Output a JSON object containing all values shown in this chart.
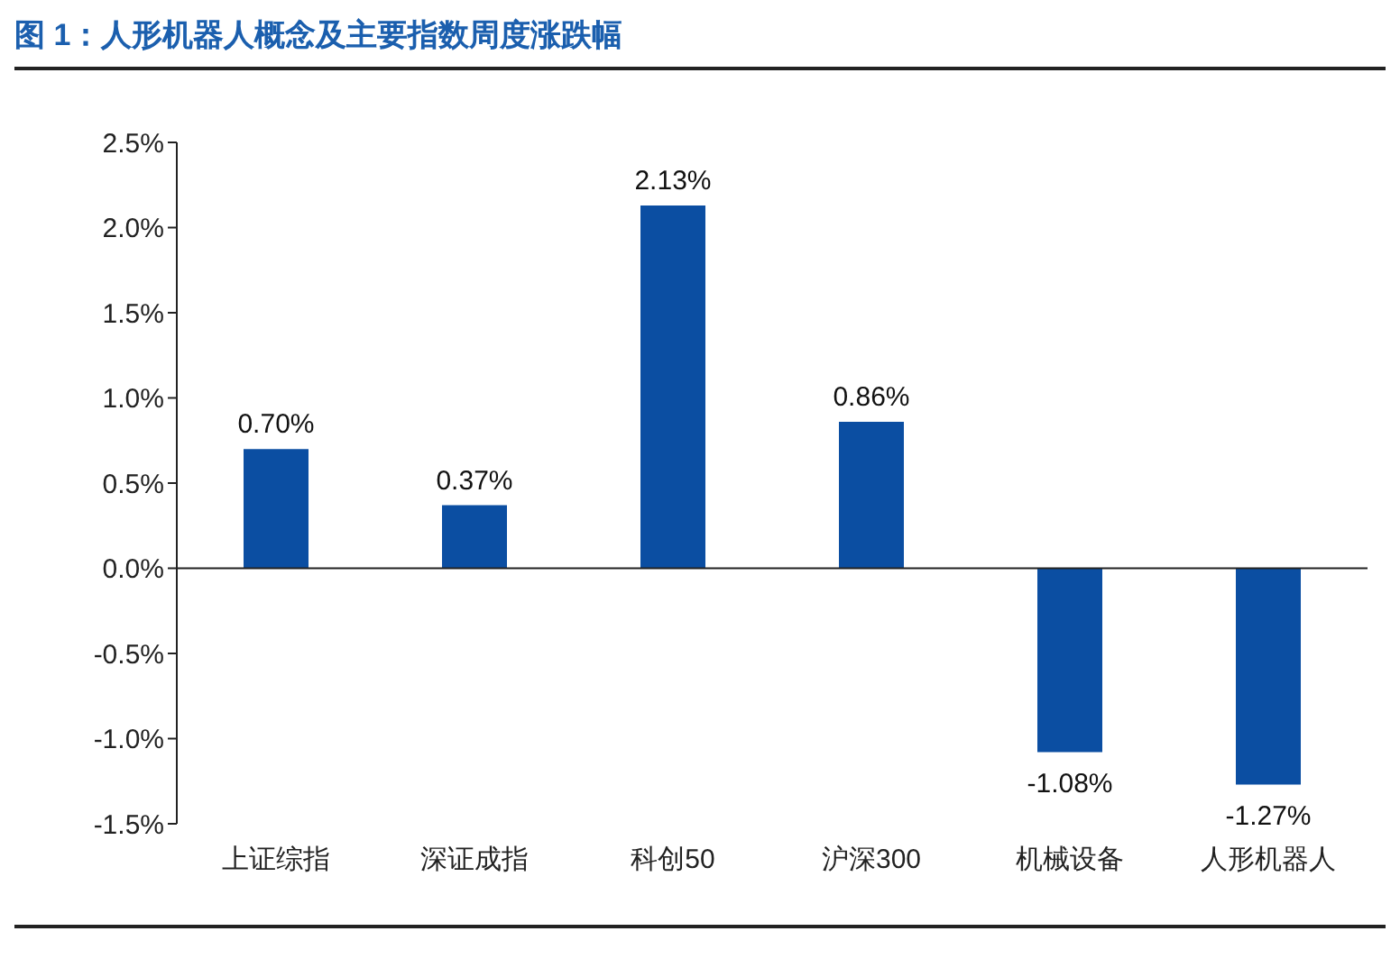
{
  "chart_data": {
    "type": "bar",
    "title": "图 1：人形机器人概念及主要指数周度涨跌幅",
    "categories": [
      "上证综指",
      "深证成指",
      "科创50",
      "沪深300",
      "机械设备",
      "人形机器人"
    ],
    "values": [
      0.7,
      0.37,
      2.13,
      0.86,
      -1.08,
      -1.27
    ],
    "value_labels": [
      "0.70%",
      "0.37%",
      "2.13%",
      "0.86%",
      "-1.08%",
      "-1.27%"
    ],
    "color": "#0b4ea2",
    "ylim": [
      -1.5,
      2.5
    ],
    "yticks": [
      {
        "value": -1.5,
        "label": "-1.5%"
      },
      {
        "value": -1.0,
        "label": "-1.0%"
      },
      {
        "value": -0.5,
        "label": "-0.5%"
      },
      {
        "value": 0,
        "label": "0.0%"
      },
      {
        "value": 0.5,
        "label": "0.5%"
      },
      {
        "value": 1.0,
        "label": "1.0%"
      },
      {
        "value": 1.5,
        "label": "1.5%"
      },
      {
        "value": 2.0,
        "label": "2.0%"
      },
      {
        "value": 2.5,
        "label": "2.5%"
      }
    ],
    "legend": false
  }
}
